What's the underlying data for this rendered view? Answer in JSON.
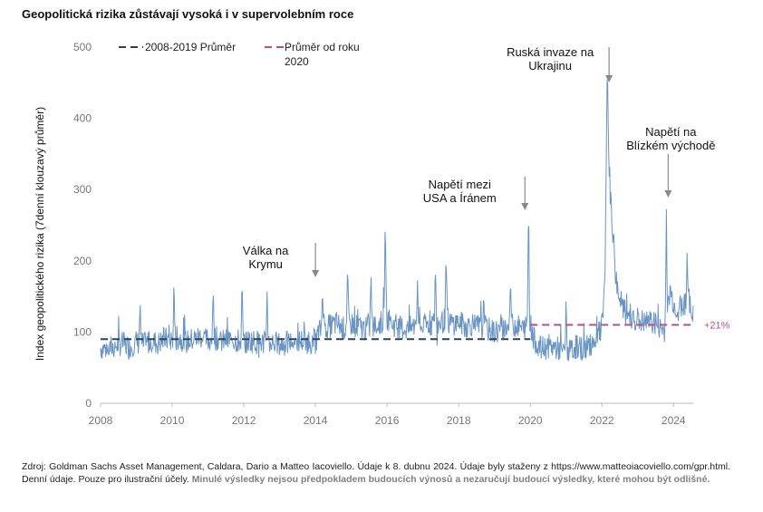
{
  "chart_data": {
    "type": "line",
    "title": "Geopolitická rizika zůstávají vysoká i v supervolebním roce",
    "ylabel": "Index geopolitického rizika (7denní klouzavý průměr)",
    "xlabel": "",
    "xlim": [
      2008,
      2024.55
    ],
    "ylim": [
      0,
      500
    ],
    "x_ticks": [
      "2008",
      "2010",
      "2012",
      "2014",
      "2016",
      "2018",
      "2020",
      "2022",
      "2024"
    ],
    "y_ticks": [
      "0",
      "100",
      "200",
      "300",
      "400",
      "500"
    ],
    "grid": false,
    "legend_position": "top-left",
    "colors": {
      "series": "#6a95c3",
      "avg2008": "#2e3f5a",
      "avgSince2020": "#b64f86",
      "pct": "#b64f86"
    },
    "series": [
      {
        "name": "",
        "points": [
          [
            2008.0,
            78
          ],
          [
            2008.2,
            76
          ],
          [
            2008.4,
            80
          ],
          [
            2008.6,
            84
          ],
          [
            2008.8,
            79
          ],
          [
            2009.0,
            86
          ],
          [
            2009.2,
            82
          ],
          [
            2009.4,
            88
          ],
          [
            2009.6,
            84
          ],
          [
            2009.8,
            90
          ],
          [
            2010.0,
            88
          ],
          [
            2010.2,
            92
          ],
          [
            2010.4,
            86
          ],
          [
            2010.6,
            90
          ],
          [
            2010.8,
            94
          ],
          [
            2011.0,
            88
          ],
          [
            2011.2,
            92
          ],
          [
            2011.4,
            86
          ],
          [
            2011.6,
            90
          ],
          [
            2011.8,
            88
          ],
          [
            2012.0,
            84
          ],
          [
            2012.2,
            88
          ],
          [
            2012.4,
            86
          ],
          [
            2012.6,
            84
          ],
          [
            2012.8,
            86
          ],
          [
            2013.0,
            82
          ],
          [
            2013.2,
            84
          ],
          [
            2013.4,
            86
          ],
          [
            2013.6,
            88
          ],
          [
            2013.8,
            86
          ],
          [
            2014.0,
            88
          ],
          [
            2014.2,
            110
          ],
          [
            2014.4,
            108
          ],
          [
            2014.6,
            112
          ],
          [
            2014.8,
            104
          ],
          [
            2015.0,
            112
          ],
          [
            2015.2,
            108
          ],
          [
            2015.4,
            104
          ],
          [
            2015.6,
            106
          ],
          [
            2015.8,
            112
          ],
          [
            2016.0,
            120
          ],
          [
            2016.2,
            110
          ],
          [
            2016.4,
            106
          ],
          [
            2016.6,
            104
          ],
          [
            2016.8,
            110
          ],
          [
            2017.0,
            108
          ],
          [
            2017.2,
            112
          ],
          [
            2017.4,
            110
          ],
          [
            2017.6,
            116
          ],
          [
            2017.8,
            112
          ],
          [
            2018.0,
            114
          ],
          [
            2018.2,
            108
          ],
          [
            2018.4,
            112
          ],
          [
            2018.6,
            106
          ],
          [
            2018.8,
            104
          ],
          [
            2019.0,
            100
          ],
          [
            2019.2,
            104
          ],
          [
            2019.4,
            108
          ],
          [
            2019.6,
            110
          ],
          [
            2019.8,
            104
          ],
          [
            2020.0,
            112
          ],
          [
            2020.1,
            90
          ],
          [
            2020.3,
            76
          ],
          [
            2020.5,
            80
          ],
          [
            2020.7,
            78
          ],
          [
            2020.9,
            74
          ],
          [
            2021.1,
            72
          ],
          [
            2021.3,
            80
          ],
          [
            2021.5,
            76
          ],
          [
            2021.7,
            84
          ],
          [
            2021.9,
            96
          ],
          [
            2022.0,
            108
          ],
          [
            2022.1,
            170
          ],
          [
            2022.2,
            320
          ],
          [
            2022.4,
            170
          ],
          [
            2022.6,
            130
          ],
          [
            2022.8,
            124
          ],
          [
            2023.0,
            118
          ],
          [
            2023.2,
            112
          ],
          [
            2023.4,
            116
          ],
          [
            2023.6,
            106
          ],
          [
            2023.8,
            100
          ],
          [
            2023.9,
            160
          ],
          [
            2024.0,
            140
          ],
          [
            2024.1,
            132
          ],
          [
            2024.2,
            136
          ],
          [
            2024.3,
            142
          ],
          [
            2024.4,
            138
          ],
          [
            2024.5,
            132
          ]
        ],
        "spikes": [
          [
            2009.1,
            130
          ],
          [
            2010.05,
            160
          ],
          [
            2011.15,
            155
          ],
          [
            2011.95,
            152
          ],
          [
            2012.65,
            155
          ],
          [
            2014.2,
            162
          ],
          [
            2014.9,
            178
          ],
          [
            2015.55,
            178
          ],
          [
            2015.95,
            252
          ],
          [
            2016.85,
            170
          ],
          [
            2017.35,
            180
          ],
          [
            2017.65,
            194
          ],
          [
            2018.7,
            160
          ],
          [
            2019.45,
            168
          ],
          [
            2019.95,
            262
          ],
          [
            2021.0,
            130
          ],
          [
            2022.15,
            437
          ],
          [
            2023.8,
            274
          ],
          [
            2024.38,
            218
          ]
        ]
      }
    ],
    "reference_lines": [
      {
        "name": "2008-2019 Průměr",
        "y": 90,
        "x_from": 2008,
        "x_to": 2020
      },
      {
        "name": "Průměr od roku 2020",
        "y": 110,
        "x_from": 2020,
        "x_to": 2024.55
      }
    ],
    "annotations": [
      {
        "lines": [
          "Válka na",
          "Krymu"
        ],
        "x": 2014.0
      },
      {
        "lines": [
          "Napětí mezi",
          "USA a Íránem"
        ],
        "x": 2019.85
      },
      {
        "lines": [
          "Ruská invaze na",
          "Ukrajinu"
        ],
        "x": 2022.2
      },
      {
        "lines": [
          "Napětí na",
          "Blízkém východě"
        ],
        "x": 2023.85
      }
    ],
    "pct_label": "+21%"
  },
  "legend": {
    "avg2008": "2008-2019 Průměr",
    "avgSince2020_line1": "Průměr od roku",
    "avgSince2020_line2": "2020"
  },
  "source": {
    "main": "Zdroj: Goldman Sachs Asset Management, Caldara, Dario a Matteo Iacoviello. Údaje k 8. dubnu 2024. Údaje byly staženy z https://www.matteoiacoviello.com/gpr.html. Denní údaje. Pouze pro ilustrační účely. ",
    "disclaimer": "Minulé výsledky nejsou předpokladem budoucích výnosů a nezaručují budoucí výsledky, které mohou být odlišné."
  }
}
